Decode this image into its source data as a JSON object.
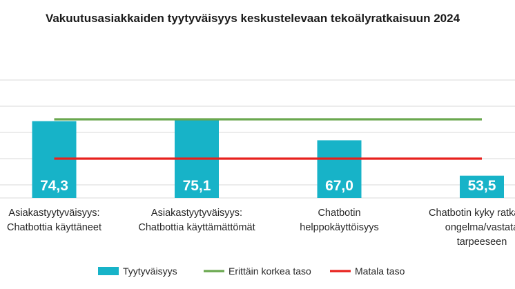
{
  "chart_data": {
    "type": "bar",
    "title": "Vakuutusasiakkaiden tyytyväisyys keskustelevaan tekoälyratkaisuun 2024",
    "categories": [
      [
        "Asiakastyytyväisyys:",
        "Chatbottia käyttäneet"
      ],
      [
        "Asiakastyytyväisyys:",
        "Chatbottia käyttämättömät"
      ],
      [
        "Chatbotin",
        "helppokäyttöisyys"
      ],
      [
        "Chatbotin kyky ratkaista",
        "ongelma/vastata",
        "tarpeeseen"
      ]
    ],
    "series": [
      {
        "name": "Tyytyväisyys",
        "type": "bar",
        "values": [
          74.3,
          75.1,
          67.0,
          53.5
        ],
        "color": "#17b3c8"
      },
      {
        "name": "Erittäin korkea taso",
        "type": "line",
        "values": [
          75,
          75,
          75,
          75
        ],
        "color": "#6aa84f"
      },
      {
        "name": "Matala taso",
        "type": "line",
        "values": [
          60,
          60,
          60,
          60
        ],
        "color": "#e8211d"
      }
    ],
    "data_labels": [
      "74,3",
      "75,1",
      "67,0",
      "53,5"
    ],
    "ylim": [
      45,
      95
    ],
    "gridlines": [
      50,
      60,
      70,
      80,
      90
    ],
    "grid": true,
    "legend_position": "bottom"
  }
}
